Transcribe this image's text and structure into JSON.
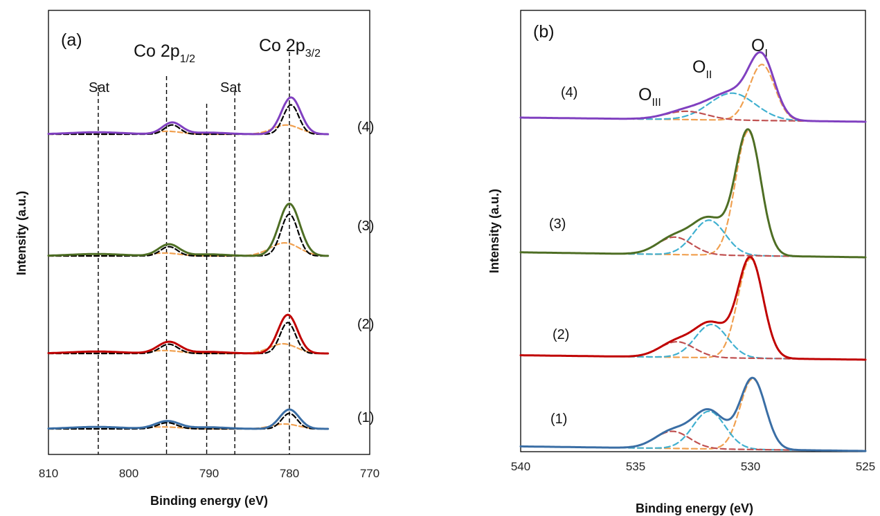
{
  "chart_data": [
    {
      "type": "line",
      "panel_label": "(a)",
      "xlabel": "Binding energy (eV)",
      "ylabel": "Intensity (a.u.)",
      "xlim": [
        810,
        770
      ],
      "x_reversed": true,
      "x_ticks": [
        "810",
        "800",
        "790",
        "780",
        "770"
      ],
      "annotations": {
        "co_half_main": "Co 2p",
        "co_half_sub": "1/2",
        "co_three_main": "Co 2p",
        "co_three_sub": "3/2",
        "sat1": "Sat",
        "sat2": "Sat"
      },
      "reference_lines_ev": [
        803.8,
        795.3,
        790.3,
        786.8,
        780.0
      ],
      "colors": {
        "fit_black": "#000000",
        "fit_orange": "#f0a050"
      },
      "spectra": [
        {
          "label": "(1)",
          "color": "#3a6ea5",
          "baseline": 0.05,
          "peaks": [
            {
              "x": 780.0,
              "h": 0.1,
              "w": 1.2
            },
            {
              "x": 795.2,
              "h": 0.04,
              "w": 1.5
            }
          ]
        },
        {
          "label": "(2)",
          "color": "#c00000",
          "baseline": 0.26,
          "peaks": [
            {
              "x": 780.2,
              "h": 0.2,
              "w": 1.2
            },
            {
              "x": 795.0,
              "h": 0.06,
              "w": 1.4
            }
          ]
        },
        {
          "label": "(3)",
          "color": "#4e6e24",
          "baseline": 0.47,
          "peaks": [
            {
              "x": 780.0,
              "h": 0.27,
              "w": 1.3
            },
            {
              "x": 795.0,
              "h": 0.06,
              "w": 1.3
            }
          ]
        },
        {
          "label": "(4)",
          "color": "#8040c0",
          "baseline": 0.76,
          "peaks": [
            {
              "x": 779.8,
              "h": 0.19,
              "w": 1.2
            },
            {
              "x": 794.6,
              "h": 0.06,
              "w": 1.2
            }
          ]
        }
      ]
    },
    {
      "type": "line",
      "panel_label": "(b)",
      "xlabel": "Binding energy (eV)",
      "ylabel": "Intensity (a.u.)",
      "xlim": [
        540,
        525
      ],
      "x_reversed": true,
      "x_ticks": [
        "540",
        "535",
        "530",
        "525"
      ],
      "annotations": {
        "o1_main": "O",
        "o1_sub": "I",
        "o2_main": "O",
        "o2_sub": "II",
        "o3_main": "O",
        "o3_sub": "III"
      },
      "colors": {
        "component_I": "#f0a050",
        "component_II": "#40b0d0",
        "component_III": "#c05050"
      },
      "spectra": [
        {
          "label": "(1)",
          "color": "#3a6ea5",
          "baseline": 0.0,
          "components": [
            {
              "x": 529.9,
              "h": 0.62,
              "w": 0.55
            },
            {
              "x": 531.8,
              "h": 0.33,
              "w": 0.7
            },
            {
              "x": 533.4,
              "h": 0.15,
              "w": 0.75
            }
          ]
        },
        {
          "label": "(2)",
          "color": "#c00000",
          "baseline": 0.0,
          "components": [
            {
              "x": 530.0,
              "h": 0.9,
              "w": 0.55
            },
            {
              "x": 531.7,
              "h": 0.3,
              "w": 0.7
            },
            {
              "x": 533.2,
              "h": 0.14,
              "w": 0.75
            }
          ]
        },
        {
          "label": "(3)",
          "color": "#4e6e24",
          "baseline": 0.0,
          "components": [
            {
              "x": 530.1,
              "h": 1.0,
              "w": 0.55
            },
            {
              "x": 531.8,
              "h": 0.28,
              "w": 0.7
            },
            {
              "x": 533.3,
              "h": 0.14,
              "w": 0.75
            }
          ]
        },
        {
          "label": "(4)",
          "color": "#8040c0",
          "baseline": 0.0,
          "components": [
            {
              "x": 529.5,
              "h": 0.54,
              "w": 0.55
            },
            {
              "x": 530.8,
              "h": 0.26,
              "w": 1.0
            },
            {
              "x": 532.8,
              "h": 0.08,
              "w": 0.9
            }
          ]
        }
      ]
    }
  ]
}
